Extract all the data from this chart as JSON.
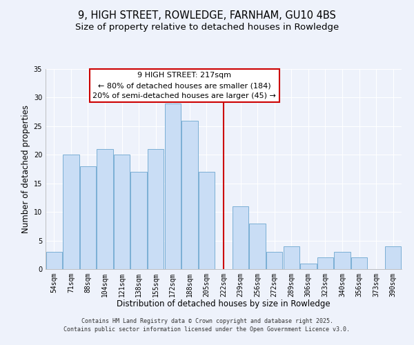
{
  "title": "9, HIGH STREET, ROWLEDGE, FARNHAM, GU10 4BS",
  "subtitle": "Size of property relative to detached houses in Rowledge",
  "xlabel": "Distribution of detached houses by size in Rowledge",
  "ylabel": "Number of detached properties",
  "categories": [
    "54sqm",
    "71sqm",
    "88sqm",
    "104sqm",
    "121sqm",
    "138sqm",
    "155sqm",
    "172sqm",
    "188sqm",
    "205sqm",
    "222sqm",
    "239sqm",
    "256sqm",
    "272sqm",
    "289sqm",
    "306sqm",
    "323sqm",
    "340sqm",
    "356sqm",
    "373sqm",
    "390sqm"
  ],
  "values": [
    3,
    20,
    18,
    21,
    20,
    17,
    21,
    29,
    26,
    17,
    0,
    11,
    8,
    3,
    4,
    1,
    2,
    3,
    2,
    0,
    4
  ],
  "bar_color": "#c9ddf5",
  "bar_edge_color": "#7bafd4",
  "vline_x": 10.0,
  "vline_color": "#cc0000",
  "annotation_title": "9 HIGH STREET: 217sqm",
  "annotation_line1": "← 80% of detached houses are smaller (184)",
  "annotation_line2": "20% of semi-detached houses are larger (45) →",
  "annotation_box_edge": "#cc0000",
  "ylim": [
    0,
    35
  ],
  "yticks": [
    0,
    5,
    10,
    15,
    20,
    25,
    30,
    35
  ],
  "footer1": "Contains HM Land Registry data © Crown copyright and database right 2025.",
  "footer2": "Contains public sector information licensed under the Open Government Licence v3.0.",
  "bg_color": "#eef2fb",
  "plot_bg_color": "#eef2fb",
  "grid_color": "#ffffff",
  "title_fontsize": 10.5,
  "subtitle_fontsize": 9.5,
  "xlabel_fontsize": 8.5,
  "ylabel_fontsize": 8.5,
  "tick_fontsize": 7,
  "footer_fontsize": 6,
  "annot_fontsize": 8,
  "annot_title_fontsize": 8.5
}
